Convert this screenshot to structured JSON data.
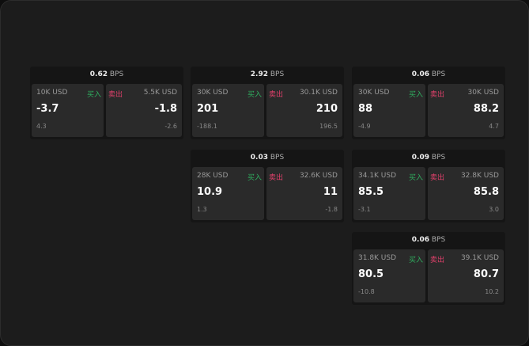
{
  "unit": "BPS",
  "cards": [
    {
      "spread": "0.62",
      "buy": {
        "size": "10K USD",
        "price": "-3.7",
        "change": "4.3"
      },
      "sell": {
        "size": "5.5K USD",
        "price": "-1.8",
        "change": "-2.6"
      }
    },
    {
      "spread": "2.92",
      "buy": {
        "size": "30K USD",
        "price": "201",
        "change": "-188.1"
      },
      "sell": {
        "size": "30.1K USD",
        "price": "210",
        "change": "196.5"
      }
    },
    {
      "spread": "0.06",
      "buy": {
        "size": "30K USD",
        "price": "88",
        "change": "-4.9"
      },
      "sell": {
        "size": "30K USD",
        "price": "88.2",
        "change": "4.7"
      }
    },
    {
      "spread": "0.03",
      "buy": {
        "size": "28K USD",
        "price": "10.9",
        "change": "1.3"
      },
      "sell": {
        "size": "32.6K USD",
        "price": "11",
        "change": "-1.8"
      }
    },
    {
      "spread": "0.09",
      "buy": {
        "size": "34.1K USD",
        "price": "85.5",
        "change": "-3.1"
      },
      "sell": {
        "size": "32.8K USD",
        "price": "85.8",
        "change": "3.0"
      }
    },
    {
      "spread": "0.06",
      "buy": {
        "size": "31.8K USD",
        "price": "80.5",
        "change": "-10.8"
      },
      "sell": {
        "size": "39.1K USD",
        "price": "80.7",
        "change": "10.2"
      }
    }
  ],
  "labels": {
    "buy": "买入",
    "sell": "卖出"
  },
  "colors": {
    "buy": "#2fae5f",
    "sell": "#e0406b"
  }
}
